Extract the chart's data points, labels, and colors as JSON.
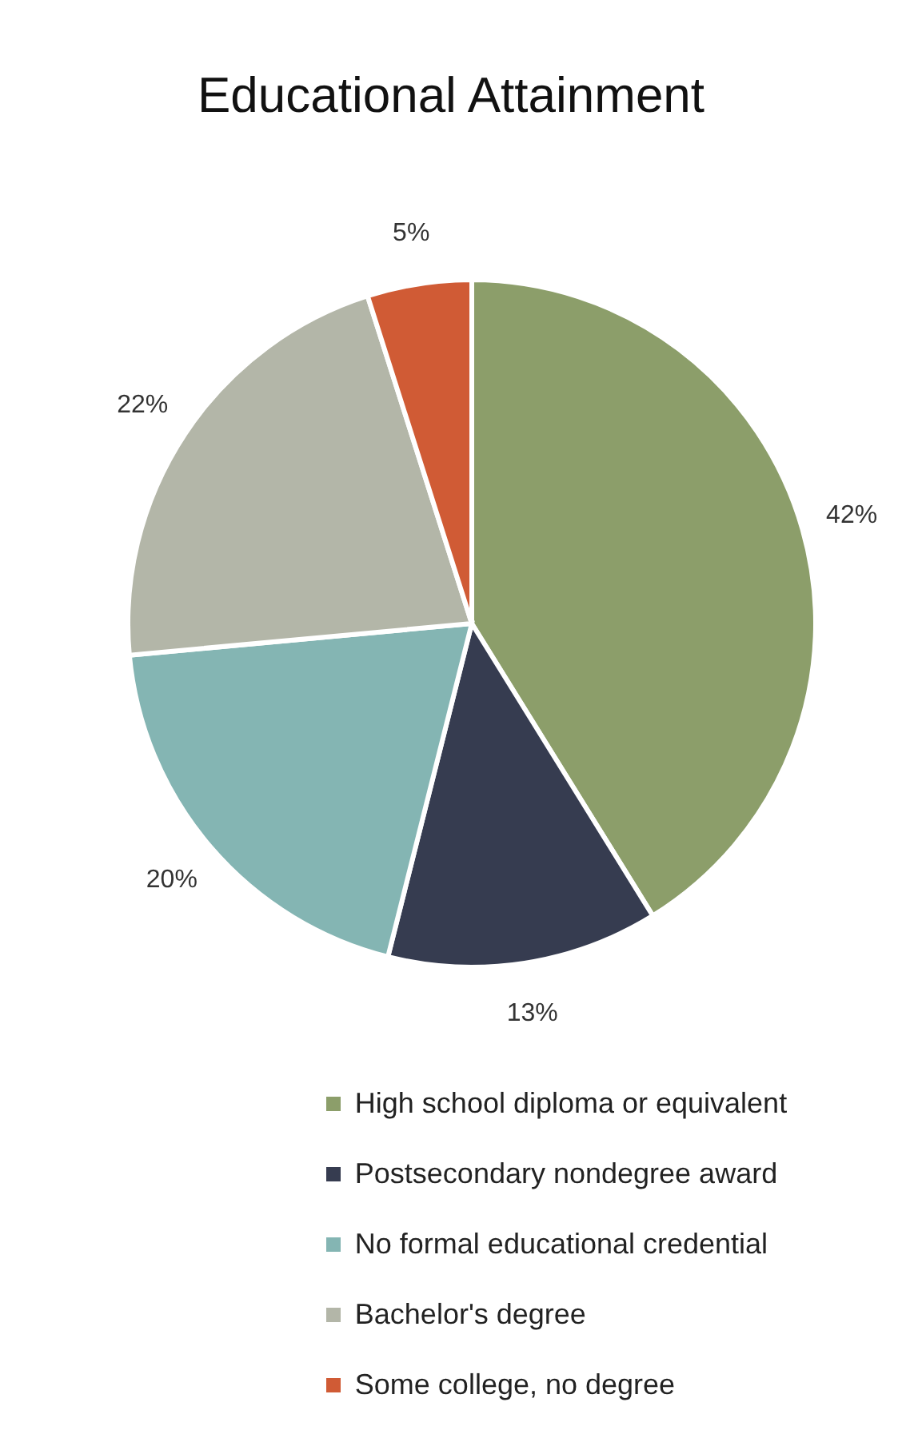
{
  "chart_data": {
    "type": "pie",
    "title": "Educational Attainment",
    "categories": [
      "High school diploma or equivalent",
      "Postsecondary nondegree award",
      "No formal educational credential",
      "Bachelor's degree",
      "Some college, no degree"
    ],
    "values": [
      42,
      13,
      20,
      22,
      5
    ],
    "value_labels": [
      "42%",
      "13%",
      "20%",
      "22%",
      "5%"
    ],
    "colors": [
      "#8c9e6a",
      "#363c50",
      "#84b5b3",
      "#b3b6a8",
      "#d05b35"
    ],
    "legend": "bottom"
  }
}
